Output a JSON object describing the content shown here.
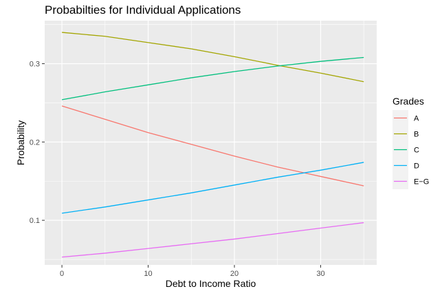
{
  "chart_data": {
    "type": "line",
    "title": "Probabilties for Individual Applications",
    "xlabel": "Debt to Income Ratio",
    "ylabel": "Probability",
    "xlim": [
      -2,
      36.5
    ],
    "ylim": [
      0.043,
      0.355
    ],
    "x_ticks": [
      0,
      10,
      20,
      30
    ],
    "y_ticks": [
      0.1,
      0.2,
      0.3
    ],
    "y_tick_labels": [
      "0.1",
      "0.2",
      "0.3"
    ],
    "grid": true,
    "legend": {
      "title": "Grades",
      "position": "right"
    },
    "x": [
      0,
      5,
      10,
      15,
      20,
      25,
      30,
      35
    ],
    "series": [
      {
        "name": "A",
        "color": "#F8766D",
        "values": [
          0.246,
          0.229,
          0.212,
          0.197,
          0.182,
          0.168,
          0.156,
          0.144
        ]
      },
      {
        "name": "B",
        "color": "#A3A500",
        "values": [
          0.34,
          0.335,
          0.327,
          0.319,
          0.309,
          0.298,
          0.288,
          0.277
        ]
      },
      {
        "name": "C",
        "color": "#00BF7D",
        "values": [
          0.254,
          0.264,
          0.273,
          0.282,
          0.29,
          0.297,
          0.303,
          0.308
        ]
      },
      {
        "name": "D",
        "color": "#00B0F6",
        "values": [
          0.109,
          0.117,
          0.126,
          0.135,
          0.145,
          0.155,
          0.164,
          0.174
        ]
      },
      {
        "name": "E−G",
        "color": "#E76BF3",
        "values": [
          0.053,
          0.058,
          0.064,
          0.07,
          0.076,
          0.083,
          0.09,
          0.097
        ]
      }
    ]
  }
}
